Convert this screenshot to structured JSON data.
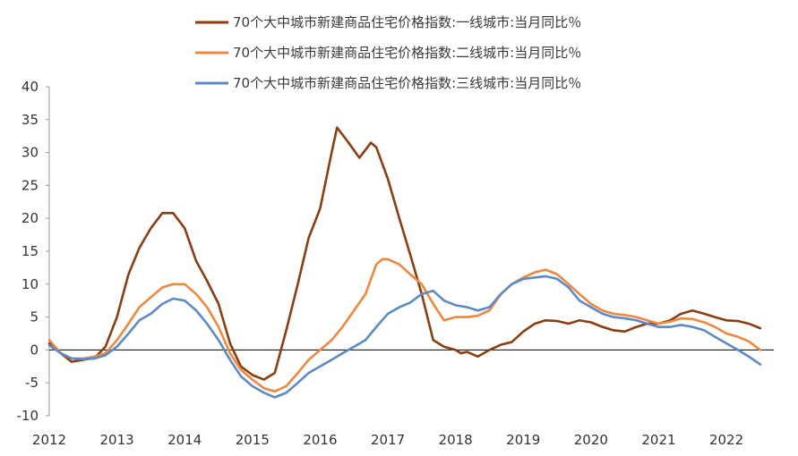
{
  "chart_data": {
    "type": "line",
    "title": "",
    "xlabel": "",
    "ylabel": "",
    "ylim": [
      -10,
      40
    ],
    "yticks": [
      -10,
      -5,
      0,
      5,
      10,
      15,
      20,
      25,
      30,
      35,
      40
    ],
    "xlim": [
      2012.0,
      2022.7
    ],
    "xticks": [
      "2012",
      "2013",
      "2014",
      "2015",
      "2016",
      "2017",
      "2018",
      "2019",
      "2020",
      "2021",
      "2022"
    ],
    "grid": false,
    "legend_position": "top",
    "series": [
      {
        "name": "70个大中城市新建商品住宅价格指数:一线城市:当月同比％",
        "color": "#8B3E12",
        "points": [
          [
            2012.0,
            1.0
          ],
          [
            2012.17,
            -0.5
          ],
          [
            2012.33,
            -1.8
          ],
          [
            2012.5,
            -1.5
          ],
          [
            2012.67,
            -1.2
          ],
          [
            2012.83,
            0.5
          ],
          [
            2013.0,
            5.0
          ],
          [
            2013.17,
            11.5
          ],
          [
            2013.33,
            15.5
          ],
          [
            2013.5,
            18.5
          ],
          [
            2013.67,
            20.8
          ],
          [
            2013.83,
            20.8
          ],
          [
            2014.0,
            18.5
          ],
          [
            2014.17,
            13.5
          ],
          [
            2014.33,
            10.5
          ],
          [
            2014.5,
            7.0
          ],
          [
            2014.67,
            1.0
          ],
          [
            2014.83,
            -2.5
          ],
          [
            2015.0,
            -3.8
          ],
          [
            2015.17,
            -4.5
          ],
          [
            2015.33,
            -3.5
          ],
          [
            2015.5,
            3.0
          ],
          [
            2015.67,
            10.0
          ],
          [
            2015.83,
            17.0
          ],
          [
            2016.0,
            21.5
          ],
          [
            2016.17,
            30.0
          ],
          [
            2016.25,
            33.8
          ],
          [
            2016.42,
            31.5
          ],
          [
            2016.58,
            29.2
          ],
          [
            2016.75,
            31.5
          ],
          [
            2016.83,
            30.8
          ],
          [
            2017.0,
            26.0
          ],
          [
            2017.17,
            20.0
          ],
          [
            2017.33,
            14.5
          ],
          [
            2017.5,
            8.5
          ],
          [
            2017.67,
            1.5
          ],
          [
            2017.83,
            0.5
          ],
          [
            2018.0,
            0.0
          ],
          [
            2018.08,
            -0.5
          ],
          [
            2018.17,
            -0.3
          ],
          [
            2018.33,
            -1.0
          ],
          [
            2018.5,
            0.0
          ],
          [
            2018.67,
            0.8
          ],
          [
            2018.83,
            1.2
          ],
          [
            2019.0,
            2.8
          ],
          [
            2019.17,
            4.0
          ],
          [
            2019.33,
            4.5
          ],
          [
            2019.5,
            4.4
          ],
          [
            2019.67,
            4.0
          ],
          [
            2019.83,
            4.5
          ],
          [
            2020.0,
            4.2
          ],
          [
            2020.17,
            3.5
          ],
          [
            2020.33,
            3.0
          ],
          [
            2020.5,
            2.8
          ],
          [
            2020.67,
            3.5
          ],
          [
            2020.83,
            4.0
          ],
          [
            2021.0,
            4.0
          ],
          [
            2021.17,
            4.5
          ],
          [
            2021.33,
            5.5
          ],
          [
            2021.5,
            6.0
          ],
          [
            2021.67,
            5.5
          ],
          [
            2021.83,
            5.0
          ],
          [
            2022.0,
            4.5
          ],
          [
            2022.17,
            4.4
          ],
          [
            2022.33,
            4.0
          ],
          [
            2022.5,
            3.3
          ]
        ]
      },
      {
        "name": "70个大中城市新建商品住宅价格指数:二线城市:当月同比％",
        "color": "#F0873F",
        "points": [
          [
            2012.0,
            1.5
          ],
          [
            2012.17,
            -0.5
          ],
          [
            2012.33,
            -1.3
          ],
          [
            2012.5,
            -1.3
          ],
          [
            2012.67,
            -1.0
          ],
          [
            2012.83,
            -0.5
          ],
          [
            2013.0,
            1.5
          ],
          [
            2013.17,
            4.0
          ],
          [
            2013.33,
            6.5
          ],
          [
            2013.5,
            8.0
          ],
          [
            2013.67,
            9.5
          ],
          [
            2013.83,
            10.0
          ],
          [
            2014.0,
            10.0
          ],
          [
            2014.17,
            8.5
          ],
          [
            2014.33,
            6.5
          ],
          [
            2014.5,
            3.5
          ],
          [
            2014.67,
            -0.5
          ],
          [
            2014.83,
            -3.0
          ],
          [
            2015.0,
            -4.5
          ],
          [
            2015.17,
            -5.8
          ],
          [
            2015.33,
            -6.3
          ],
          [
            2015.5,
            -5.5
          ],
          [
            2015.67,
            -3.5
          ],
          [
            2015.83,
            -1.5
          ],
          [
            2016.0,
            0.0
          ],
          [
            2016.17,
            1.5
          ],
          [
            2016.33,
            3.5
          ],
          [
            2016.5,
            6.0
          ],
          [
            2016.67,
            8.5
          ],
          [
            2016.83,
            13.0
          ],
          [
            2016.92,
            13.8
          ],
          [
            2017.0,
            13.8
          ],
          [
            2017.17,
            13.0
          ],
          [
            2017.33,
            11.5
          ],
          [
            2017.5,
            10.0
          ],
          [
            2017.67,
            7.0
          ],
          [
            2017.83,
            4.5
          ],
          [
            2018.0,
            5.0
          ],
          [
            2018.17,
            5.0
          ],
          [
            2018.33,
            5.2
          ],
          [
            2018.5,
            6.0
          ],
          [
            2018.67,
            8.5
          ],
          [
            2018.83,
            10.0
          ],
          [
            2019.0,
            11.0
          ],
          [
            2019.17,
            11.8
          ],
          [
            2019.33,
            12.2
          ],
          [
            2019.5,
            11.5
          ],
          [
            2019.67,
            10.0
          ],
          [
            2019.83,
            8.5
          ],
          [
            2020.0,
            7.0
          ],
          [
            2020.17,
            6.0
          ],
          [
            2020.33,
            5.5
          ],
          [
            2020.5,
            5.3
          ],
          [
            2020.67,
            5.0
          ],
          [
            2020.83,
            4.5
          ],
          [
            2021.0,
            4.0
          ],
          [
            2021.17,
            4.3
          ],
          [
            2021.33,
            4.8
          ],
          [
            2021.5,
            4.7
          ],
          [
            2021.67,
            4.2
          ],
          [
            2021.83,
            3.5
          ],
          [
            2022.0,
            2.5
          ],
          [
            2022.17,
            2.0
          ],
          [
            2022.33,
            1.3
          ],
          [
            2022.5,
            0.0
          ]
        ]
      },
      {
        "name": "70个大中城市新建商品住宅价格指数:三线城市:当月同比％",
        "color": "#5B8AC7",
        "points": [
          [
            2012.0,
            0.7
          ],
          [
            2012.17,
            -0.5
          ],
          [
            2012.33,
            -1.3
          ],
          [
            2012.5,
            -1.4
          ],
          [
            2012.67,
            -1.3
          ],
          [
            2012.83,
            -0.8
          ],
          [
            2013.0,
            0.5
          ],
          [
            2013.17,
            2.5
          ],
          [
            2013.33,
            4.5
          ],
          [
            2013.5,
            5.5
          ],
          [
            2013.67,
            7.0
          ],
          [
            2013.83,
            7.8
          ],
          [
            2014.0,
            7.5
          ],
          [
            2014.17,
            6.0
          ],
          [
            2014.33,
            4.0
          ],
          [
            2014.5,
            1.5
          ],
          [
            2014.67,
            -1.5
          ],
          [
            2014.83,
            -4.0
          ],
          [
            2015.0,
            -5.5
          ],
          [
            2015.17,
            -6.5
          ],
          [
            2015.33,
            -7.2
          ],
          [
            2015.5,
            -6.5
          ],
          [
            2015.67,
            -5.0
          ],
          [
            2015.83,
            -3.5
          ],
          [
            2016.0,
            -2.5
          ],
          [
            2016.17,
            -1.5
          ],
          [
            2016.33,
            -0.5
          ],
          [
            2016.5,
            0.5
          ],
          [
            2016.67,
            1.5
          ],
          [
            2016.83,
            3.5
          ],
          [
            2017.0,
            5.5
          ],
          [
            2017.17,
            6.5
          ],
          [
            2017.33,
            7.2
          ],
          [
            2017.5,
            8.5
          ],
          [
            2017.67,
            9.0
          ],
          [
            2017.83,
            7.5
          ],
          [
            2018.0,
            6.8
          ],
          [
            2018.17,
            6.5
          ],
          [
            2018.33,
            6.0
          ],
          [
            2018.5,
            6.5
          ],
          [
            2018.67,
            8.5
          ],
          [
            2018.83,
            10.0
          ],
          [
            2019.0,
            10.8
          ],
          [
            2019.17,
            11.0
          ],
          [
            2019.33,
            11.2
          ],
          [
            2019.5,
            10.8
          ],
          [
            2019.67,
            9.5
          ],
          [
            2019.83,
            7.5
          ],
          [
            2020.0,
            6.5
          ],
          [
            2020.17,
            5.5
          ],
          [
            2020.33,
            5.0
          ],
          [
            2020.5,
            4.8
          ],
          [
            2020.67,
            4.5
          ],
          [
            2020.83,
            4.0
          ],
          [
            2021.0,
            3.5
          ],
          [
            2021.17,
            3.5
          ],
          [
            2021.33,
            3.8
          ],
          [
            2021.5,
            3.5
          ],
          [
            2021.67,
            3.0
          ],
          [
            2021.83,
            2.0
          ],
          [
            2022.0,
            1.0
          ],
          [
            2022.17,
            0.0
          ],
          [
            2022.33,
            -1.0
          ],
          [
            2022.5,
            -2.2
          ]
        ]
      }
    ]
  }
}
